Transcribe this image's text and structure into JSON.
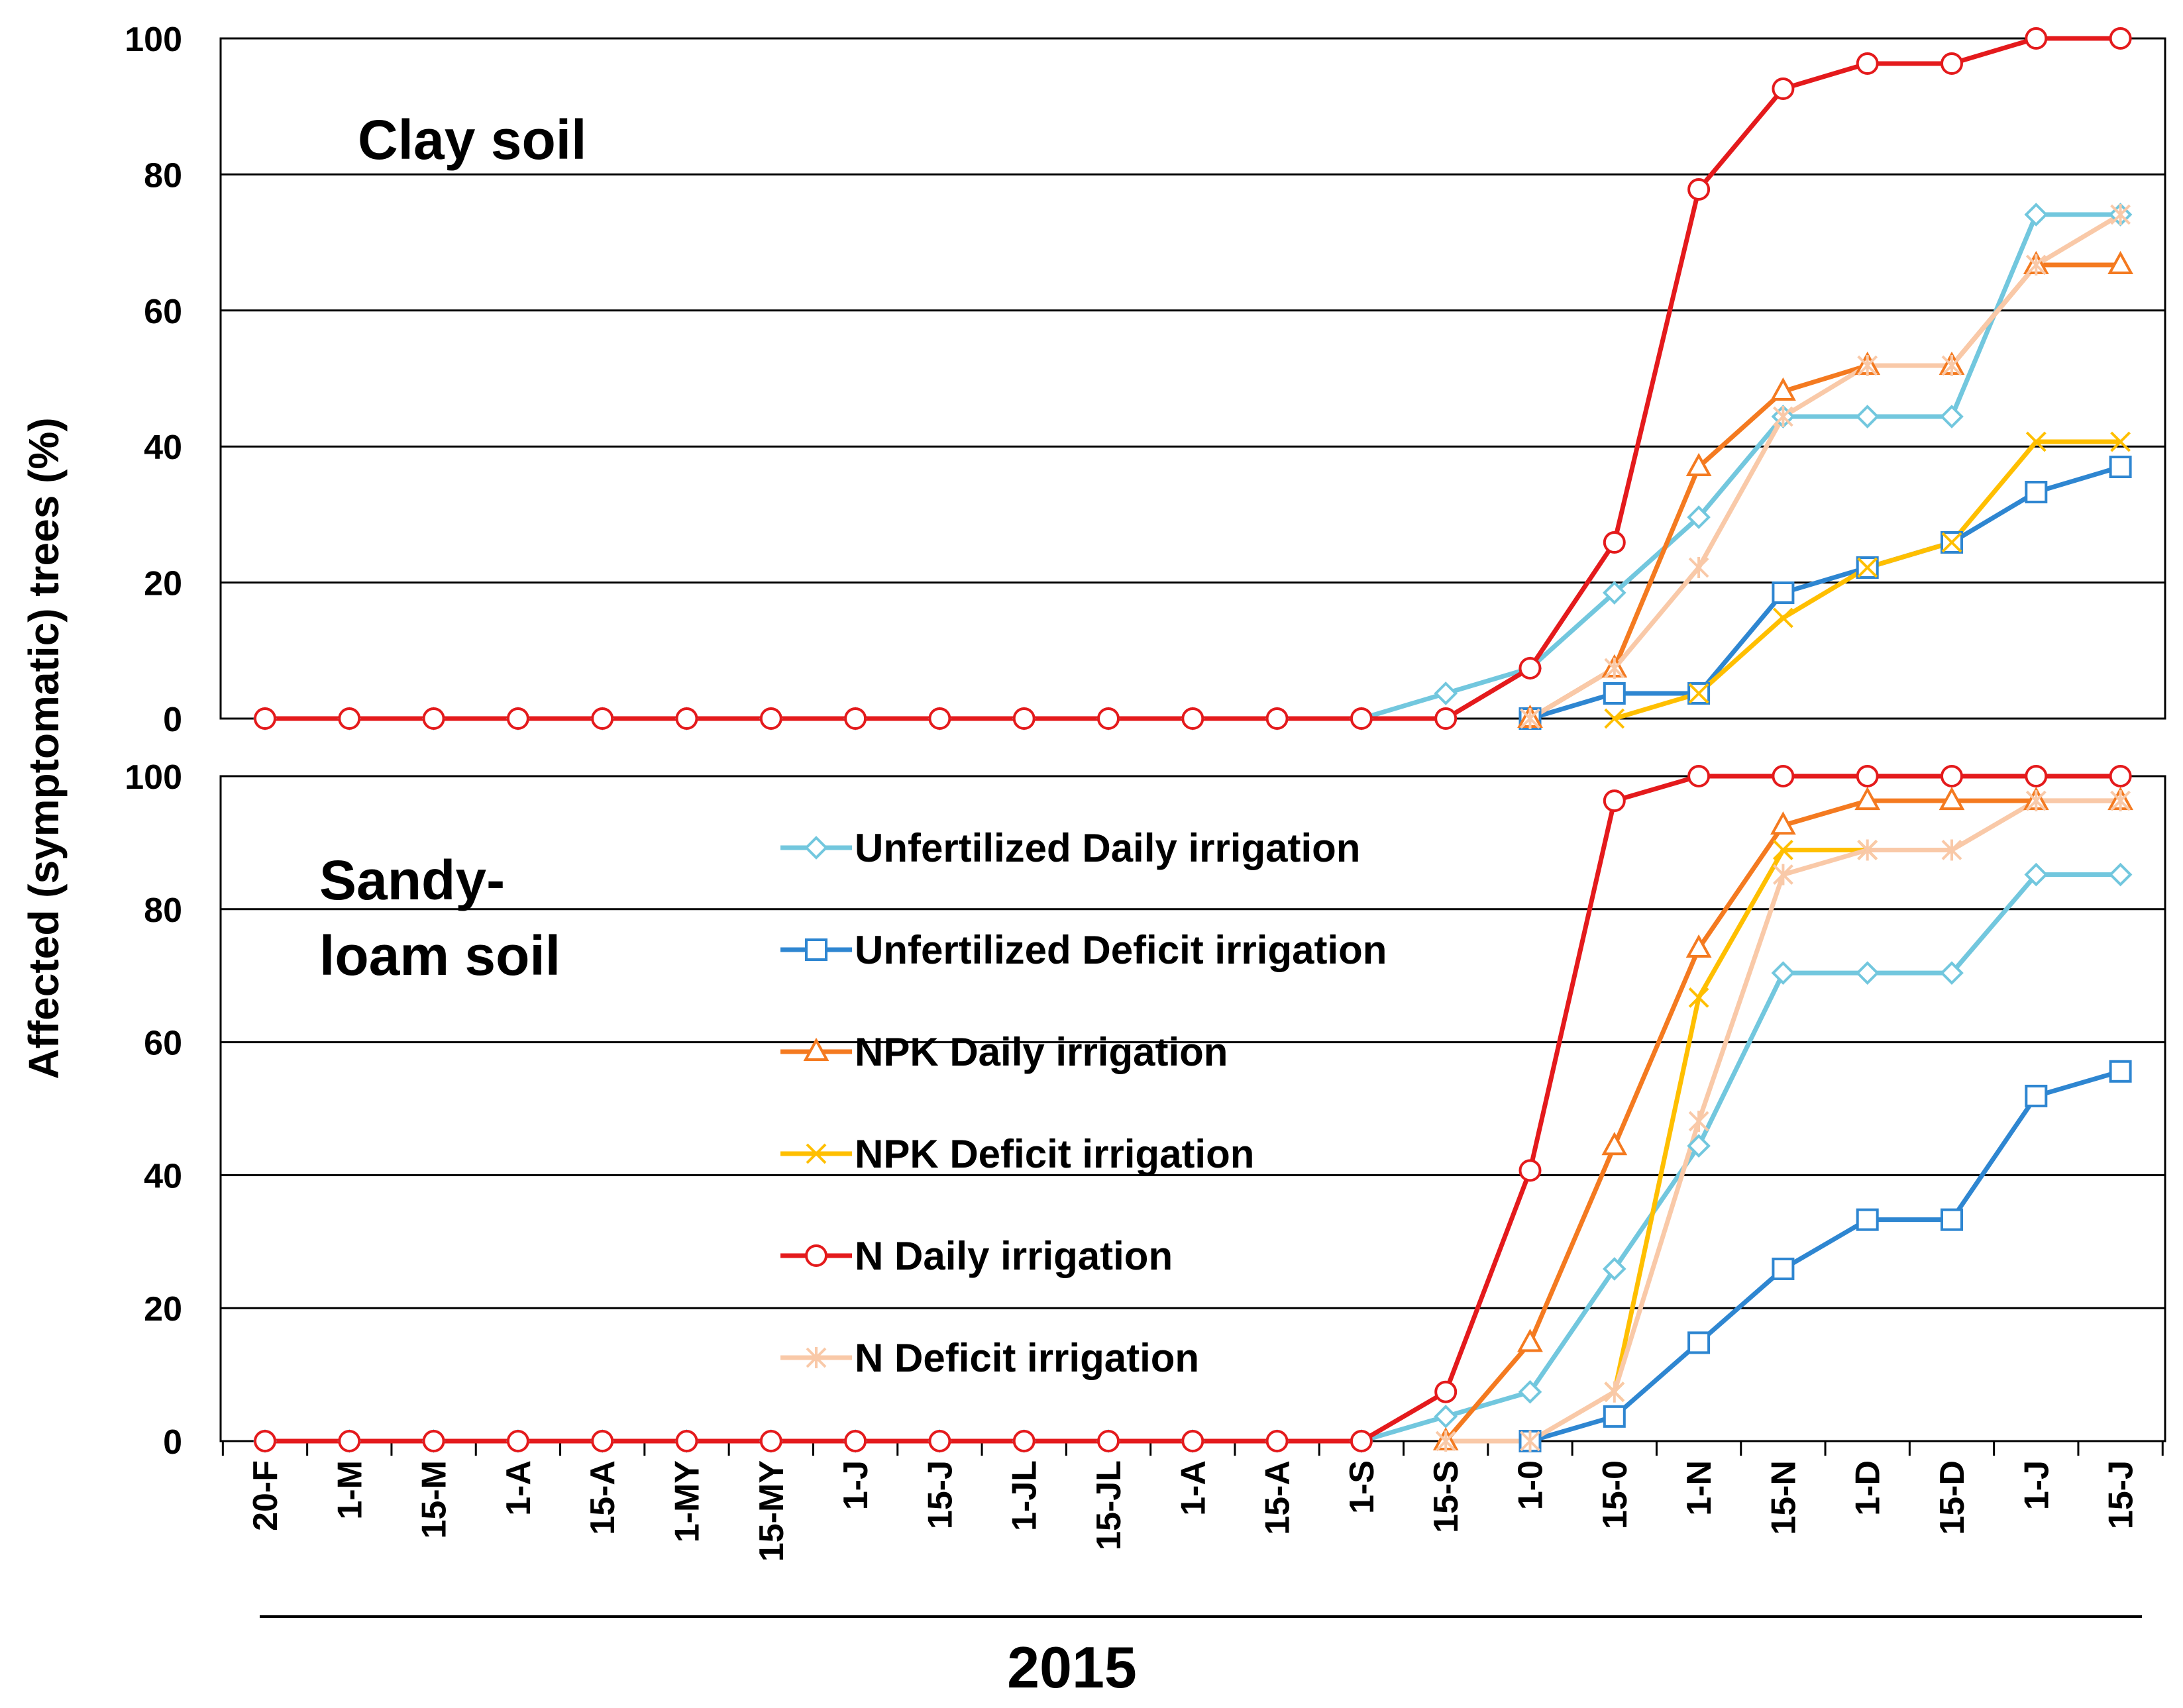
{
  "chart_data": {
    "type": "line",
    "ylabel": "Affected (symptomatic) trees (%)",
    "xlabel": "2015",
    "ylim": [
      0,
      100
    ],
    "ytick_values": [
      0,
      20,
      40,
      60,
      80,
      100
    ],
    "ytick_labels": [
      "0",
      "20",
      "40",
      "60",
      "80",
      "100"
    ],
    "categories": [
      "20-F",
      "1-M",
      "15-M",
      "1-A",
      "15-A",
      "1-MY",
      "15-MY",
      "1-J",
      "15-J",
      "1-JL",
      "15-JL",
      "1-A",
      "15-A",
      "1-S",
      "15-S",
      "1-0",
      "15-0",
      "1-N",
      "15-N",
      "1-D",
      "15-D",
      "1-J",
      "15-J"
    ],
    "legend": {
      "placement": "bottom panel, center-left"
    },
    "panels": [
      {
        "title": "Clay soil",
        "series": [
          {
            "name": "Unfertilized Daily irrigation",
            "color": "#72C7DE",
            "marker": "diamond",
            "values": [
              0,
              0,
              0,
              0,
              0,
              0,
              0,
              0,
              0,
              0,
              0,
              0,
              0,
              0,
              3.7,
              7.4,
              18.5,
              29.6,
              44.4,
              44.4,
              44.4,
              74.1,
              74.1
            ]
          },
          {
            "name": "Unfertilized Deficit irrigation",
            "color": "#2E86D1",
            "marker": "square",
            "values": [
              null,
              null,
              null,
              null,
              null,
              null,
              null,
              null,
              null,
              null,
              null,
              null,
              null,
              null,
              null,
              0,
              3.7,
              3.7,
              18.5,
              22.2,
              25.9,
              33.3,
              37
            ]
          },
          {
            "name": "NPK Daily irrigation",
            "color": "#F47A20",
            "marker": "triangle",
            "values": [
              null,
              null,
              null,
              null,
              null,
              null,
              null,
              null,
              null,
              null,
              null,
              null,
              null,
              null,
              null,
              0,
              7.4,
              37,
              48.1,
              51.9,
              51.9,
              66.7,
              66.7
            ]
          },
          {
            "name": "NPK Deficit irrigation",
            "color": "#FFBF00",
            "marker": "x",
            "values": [
              null,
              null,
              null,
              null,
              null,
              null,
              null,
              null,
              null,
              null,
              null,
              null,
              null,
              null,
              null,
              null,
              0,
              3.7,
              14.8,
              22.2,
              25.9,
              40.7,
              40.7
            ]
          },
          {
            "name": "N Deficit irrigation",
            "color": "#F9C9A8",
            "marker": "star",
            "values": [
              null,
              null,
              null,
              null,
              null,
              null,
              null,
              null,
              null,
              null,
              null,
              null,
              null,
              null,
              null,
              0,
              7.4,
              22.2,
              44.4,
              51.9,
              51.9,
              66.7,
              74.1
            ]
          },
          {
            "name": "N Daily irrigation",
            "color": "#E41A1C",
            "marker": "circle",
            "values": [
              0,
              0,
              0,
              0,
              0,
              0,
              0,
              0,
              0,
              0,
              0,
              0,
              0,
              0,
              0,
              7.4,
              25.9,
              77.8,
              92.6,
              96.3,
              96.3,
              100,
              100
            ]
          }
        ]
      },
      {
        "title_lines": [
          "Sandy-",
          "loam soil"
        ],
        "series": [
          {
            "name": "Unfertilized Daily irrigation",
            "color": "#72C7DE",
            "marker": "diamond",
            "values": [
              0,
              0,
              0,
              0,
              0,
              0,
              0,
              0,
              0,
              0,
              0,
              0,
              0,
              0,
              3.7,
              7.4,
              25.9,
              44.4,
              70.4,
              70.4,
              70.4,
              85.2,
              85.2
            ]
          },
          {
            "name": "Unfertilized Deficit irrigation",
            "color": "#2E86D1",
            "marker": "square",
            "values": [
              null,
              null,
              null,
              null,
              null,
              null,
              null,
              null,
              null,
              null,
              null,
              null,
              null,
              null,
              null,
              0,
              3.7,
              14.8,
              25.9,
              33.3,
              33.3,
              51.9,
              55.6
            ]
          },
          {
            "name": "NPK Daily irrigation",
            "color": "#F47A20",
            "marker": "triangle",
            "values": [
              null,
              null,
              null,
              null,
              null,
              null,
              null,
              null,
              null,
              null,
              null,
              null,
              null,
              null,
              0,
              14.8,
              44.4,
              74.1,
              92.6,
              96.3,
              96.3,
              96.3,
              96.3
            ]
          },
          {
            "name": "NPK Deficit irrigation",
            "color": "#FFBF00",
            "marker": "x",
            "values": [
              null,
              null,
              null,
              null,
              null,
              null,
              null,
              null,
              null,
              null,
              null,
              null,
              null,
              null,
              null,
              null,
              7.4,
              66.7,
              88.9,
              88.9,
              null,
              null,
              null
            ]
          },
          {
            "name": "N Deficit irrigation",
            "color": "#F9C9A8",
            "marker": "star",
            "values": [
              null,
              null,
              null,
              null,
              null,
              null,
              null,
              null,
              null,
              null,
              null,
              null,
              null,
              null,
              0,
              0,
              7.4,
              48.1,
              85.2,
              88.9,
              88.9,
              96.3,
              96.3
            ]
          },
          {
            "name": "N Daily irrigation",
            "color": "#E41A1C",
            "marker": "circle",
            "values": [
              0,
              0,
              0,
              0,
              0,
              0,
              0,
              0,
              0,
              0,
              0,
              0,
              0,
              0,
              7.4,
              40.7,
              96.3,
              100,
              100,
              100,
              100,
              100,
              100
            ]
          }
        ]
      }
    ]
  }
}
